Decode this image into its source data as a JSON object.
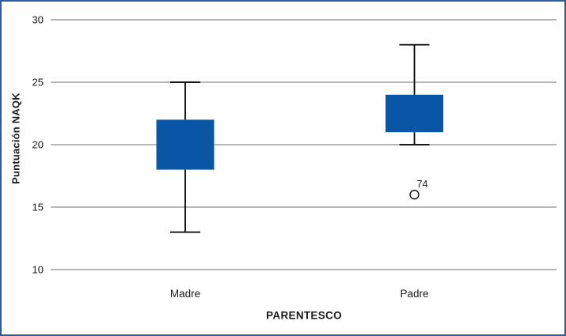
{
  "window": {
    "background_color": "#ffffff",
    "frame_color": "#2a5d9f"
  },
  "chart_data": {
    "type": "boxplot",
    "title": "",
    "xlabel": "PARENTESCO",
    "ylabel": "Puntuación NAQK",
    "categories": [
      "Madre",
      "Padre"
    ],
    "yticks": [
      10,
      15,
      20,
      25,
      30
    ],
    "ylim": [
      10,
      30
    ],
    "grid": "horizontal",
    "legend": "none",
    "median_line_visible": false,
    "boxes": [
      {
        "category": "Madre",
        "whisker_low": 13,
        "q1": 18,
        "q3": 22,
        "whisker_high": 25,
        "outliers": []
      },
      {
        "category": "Padre",
        "whisker_low": 20,
        "q1": 21,
        "q3": 24,
        "whisker_high": 28,
        "outliers": [
          {
            "value": 16,
            "label": "74"
          }
        ]
      }
    ],
    "colors": {
      "box_fill": "#0a56a4",
      "whisker": "#000000",
      "gridline": "#9d9d9d",
      "text": "#1a1a1a",
      "outlier_stroke": "#000000",
      "outlier_fill": "#ffffff"
    }
  }
}
